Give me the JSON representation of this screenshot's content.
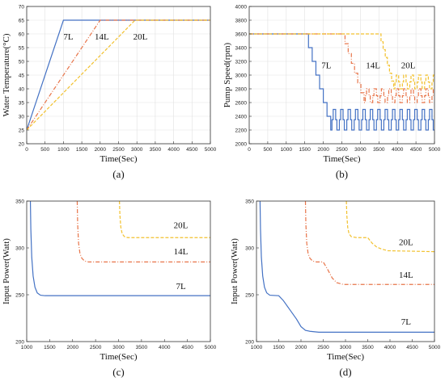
{
  "colors": {
    "7L": "#4472c4",
    "14L": "#e8754a",
    "20L": "#f2c12e"
  },
  "chart_data": [
    {
      "panel": "(a)",
      "type": "line",
      "xlabel": "Time(Sec)",
      "ylabel": "Water Temperature(°C)",
      "xlim": [
        0,
        5000
      ],
      "ylim": [
        20,
        70
      ],
      "xticks": [
        0,
        500,
        1000,
        1500,
        2000,
        2500,
        3000,
        3500,
        4000,
        4500,
        5000
      ],
      "yticks": [
        20,
        25,
        30,
        35,
        40,
        45,
        50,
        55,
        60,
        65,
        70
      ],
      "grid": true,
      "series": [
        {
          "name": "7L",
          "style": "solid",
          "points": [
            [
              0,
              25
            ],
            [
              1000,
              65
            ],
            [
              5000,
              65
            ]
          ]
        },
        {
          "name": "14L",
          "style": "dashdot",
          "points": [
            [
              0,
              25
            ],
            [
              2000,
              65
            ],
            [
              5000,
              65
            ]
          ]
        },
        {
          "name": "20L",
          "style": "dashed",
          "points": [
            [
              0,
              25
            ],
            [
              2950,
              65
            ],
            [
              5000,
              65
            ]
          ]
        }
      ],
      "labels": [
        {
          "text": "7L",
          "x": 1000,
          "y": 58
        },
        {
          "text": "14L",
          "x": 1850,
          "y": 58
        },
        {
          "text": "20L",
          "x": 2900,
          "y": 58
        }
      ]
    },
    {
      "panel": "(b)",
      "type": "line",
      "xlabel": "Time(Sec)",
      "ylabel": "Pump Speed(rpm)",
      "xlim": [
        0,
        5000
      ],
      "ylim": [
        2000,
        4000
      ],
      "xticks": [
        0,
        500,
        1000,
        1500,
        2000,
        2500,
        3000,
        3500,
        4000,
        4500,
        5000
      ],
      "yticks": [
        2000,
        2200,
        2400,
        2600,
        2800,
        3000,
        3200,
        3400,
        3600,
        3800,
        4000
      ],
      "grid": true,
      "series": [
        {
          "name": "7L",
          "style": "solid",
          "start": 1500,
          "drop_end": 2200,
          "high": 3600,
          "osc_low": 2200,
          "osc_high": 2500,
          "period": 200
        },
        {
          "name": "14L",
          "style": "dashdot",
          "start": 2500,
          "drop_end": 3100,
          "high": 3600,
          "osc_low": 2600,
          "osc_high": 2800,
          "period": 200
        },
        {
          "name": "20L",
          "style": "dashed",
          "start": 3500,
          "drop_end": 3900,
          "high": 3600,
          "osc_low": 2800,
          "osc_high": 3000,
          "period": 200
        }
      ],
      "labels": [
        {
          "text": "7L",
          "x": 1950,
          "y": 3100
        },
        {
          "text": "14L",
          "x": 3150,
          "y": 3100
        },
        {
          "text": "20L",
          "x": 4100,
          "y": 3100
        }
      ]
    },
    {
      "panel": "(c)",
      "type": "line",
      "xlabel": "Time(Sec)",
      "ylabel": "Input Power(Watt)",
      "xlim": [
        1000,
        5000
      ],
      "ylim": [
        200,
        350
      ],
      "xticks": [
        1000,
        1500,
        2000,
        2500,
        3000,
        3500,
        4000,
        4500,
        5000
      ],
      "yticks": [
        200,
        250,
        300,
        350
      ],
      "grid": false,
      "series": [
        {
          "name": "7L",
          "style": "solid",
          "points": [
            [
              1080,
              350
            ],
            [
              1090,
              320
            ],
            [
              1110,
              290
            ],
            [
              1140,
              270
            ],
            [
              1180,
              258
            ],
            [
              1230,
              252
            ],
            [
              1300,
              249.5
            ],
            [
              1400,
              249
            ],
            [
              5000,
              249
            ]
          ]
        },
        {
          "name": "14L",
          "style": "dashdot",
          "points": [
            [
              2100,
              350
            ],
            [
              2110,
              325
            ],
            [
              2130,
              305
            ],
            [
              2160,
              294
            ],
            [
              2200,
              289
            ],
            [
              2260,
              286
            ],
            [
              2350,
              285
            ],
            [
              5000,
              285
            ]
          ]
        },
        {
          "name": "20L",
          "style": "dashed",
          "points": [
            [
              3020,
              350
            ],
            [
              3030,
              335
            ],
            [
              3050,
              322
            ],
            [
              3080,
              315
            ],
            [
              3130,
              312
            ],
            [
              3200,
              311
            ],
            [
              5000,
              311
            ]
          ]
        }
      ],
      "labels": [
        {
          "text": "20L",
          "x": 4200,
          "y": 321
        },
        {
          "text": "14L",
          "x": 4200,
          "y": 293
        },
        {
          "text": "7L",
          "x": 4250,
          "y": 256
        }
      ]
    },
    {
      "panel": "(d)",
      "type": "line",
      "xlabel": "Time(Sec)",
      "ylabel": "Input Power(Watt)",
      "xlim": [
        1000,
        5000
      ],
      "ylim": [
        200,
        350
      ],
      "xticks": [
        1000,
        1500,
        2000,
        2500,
        3000,
        3500,
        4000,
        4500,
        5000
      ],
      "yticks": [
        200,
        250,
        300,
        350
      ],
      "grid": false,
      "series": [
        {
          "name": "7L",
          "style": "solid",
          "points": [
            [
              1080,
              350
            ],
            [
              1090,
              320
            ],
            [
              1110,
              290
            ],
            [
              1140,
              270
            ],
            [
              1180,
              258
            ],
            [
              1230,
              252
            ],
            [
              1300,
              249.5
            ],
            [
              1500,
              249
            ],
            [
              1600,
              244
            ],
            [
              1750,
              234
            ],
            [
              1900,
              224
            ],
            [
              2000,
              216
            ],
            [
              2100,
              212
            ],
            [
              2200,
              211
            ],
            [
              2400,
              210
            ],
            [
              5000,
              210
            ]
          ]
        },
        {
          "name": "14L",
          "style": "dashdot",
          "points": [
            [
              2100,
              350
            ],
            [
              2110,
              325
            ],
            [
              2130,
              305
            ],
            [
              2160,
              294
            ],
            [
              2200,
              289
            ],
            [
              2260,
              286
            ],
            [
              2350,
              285
            ],
            [
              2500,
              285
            ],
            [
              2600,
              277
            ],
            [
              2700,
              268
            ],
            [
              2800,
              263
            ],
            [
              2950,
              261
            ],
            [
              5000,
              261
            ]
          ]
        },
        {
          "name": "20L",
          "style": "dashed",
          "points": [
            [
              3020,
              350
            ],
            [
              3030,
              335
            ],
            [
              3050,
              322
            ],
            [
              3080,
              315
            ],
            [
              3130,
              312
            ],
            [
              3250,
              311
            ],
            [
              3500,
              311
            ],
            [
              3600,
              305
            ],
            [
              3700,
              301
            ],
            [
              3800,
              299
            ],
            [
              3950,
              297
            ],
            [
              5000,
              296
            ]
          ]
        }
      ],
      "labels": [
        {
          "text": "20L",
          "x": 4200,
          "y": 303
        },
        {
          "text": "14L",
          "x": 4200,
          "y": 268
        },
        {
          "text": "7L",
          "x": 4250,
          "y": 218
        }
      ]
    }
  ]
}
